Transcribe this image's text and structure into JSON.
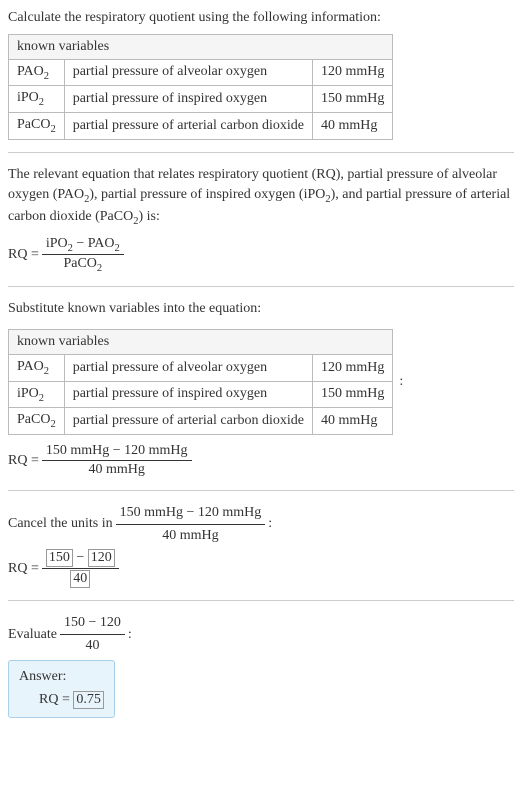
{
  "intro": "Calculate the respiratory quotient using the following information:",
  "table1": {
    "header": "known variables",
    "rows": [
      {
        "sym": "PAO",
        "sub": "2",
        "desc": "partial pressure of alveolar oxygen",
        "val": "120 mmHg"
      },
      {
        "sym": "iPO",
        "sub": "2",
        "desc": "partial pressure of inspired oxygen",
        "val": "150 mmHg"
      },
      {
        "sym": "PaCO",
        "sub": "2",
        "desc": "partial pressure of arterial carbon dioxide",
        "val": "40 mmHg"
      }
    ]
  },
  "explain": {
    "pre": "The relevant equation that relates respiratory quotient (RQ), partial pressure of alveolar oxygen (PAO",
    "sub1": "2",
    "mid1": "), partial pressure of inspired oxygen (iPO",
    "sub2": "2",
    "mid2": "), and partial pressure of arterial carbon dioxide (PaCO",
    "sub3": "2",
    "post": ") is:"
  },
  "eq1": {
    "lhs": "RQ = ",
    "num_a": "iPO",
    "num_asub": "2",
    "num_minus": " − ",
    "num_b": "PAO",
    "num_bsub": "2",
    "den_a": "PaCO",
    "den_asub": "2"
  },
  "substitute_text": "Substitute known variables into the equation:",
  "eq2": {
    "lhs": "RQ = ",
    "num": "150 mmHg − 120 mmHg",
    "den": "40 mmHg"
  },
  "cancel": {
    "pre": "Cancel the units in ",
    "num": "150 mmHg − 120 mmHg",
    "den": "40 mmHg",
    "post": ":"
  },
  "eq3": {
    "lhs": "RQ = ",
    "num_a": "150",
    "num_minus": " − ",
    "num_b": "120",
    "den": "40"
  },
  "evaluate": {
    "pre": "Evaluate ",
    "num": "150 − 120",
    "den": "40",
    "post": ":"
  },
  "answer": {
    "label": "Answer:",
    "lhs": "RQ = ",
    "val": "0.75"
  }
}
